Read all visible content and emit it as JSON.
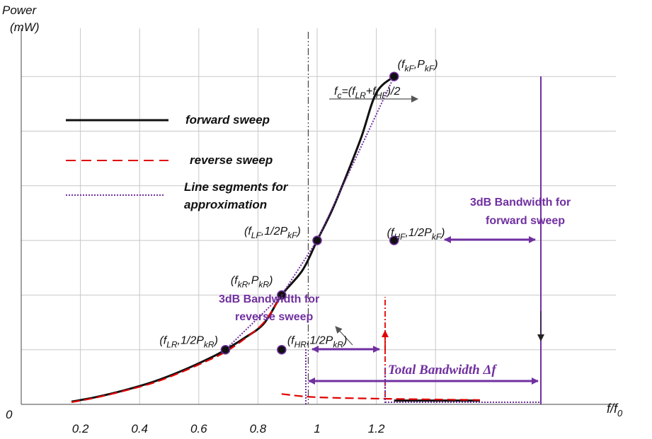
{
  "chart_data": {
    "type": "line",
    "ylabel_line1": "Power",
    "ylabel_line2": "(mW)",
    "xlabel": "f/f",
    "xlabel_sub": "0",
    "origin_label": "0",
    "x_ticks": [
      {
        "value": 0.2,
        "label": "0.2"
      },
      {
        "value": 0.4,
        "label": "0.4"
      },
      {
        "value": 0.6,
        "label": "0.6"
      },
      {
        "value": 0.8,
        "label": "0.8"
      },
      {
        "value": 1.0,
        "label": "1"
      },
      {
        "value": 1.2,
        "label": "1.2"
      }
    ],
    "xlim": [
      0.0,
      1.55
    ],
    "ylim": [
      0.0,
      6.5
    ],
    "grid": true,
    "legend_position": "top-left",
    "series": [
      {
        "name": "forward sweep",
        "color": "#111111",
        "style": "solid",
        "x": [
          0.17,
          0.25,
          0.35,
          0.45,
          0.55,
          0.65,
          0.69,
          0.75,
          0.82,
          0.88,
          0.95,
          1.0,
          1.05,
          1.1,
          1.15,
          1.2,
          1.26
        ],
        "y": [
          0.05,
          0.13,
          0.26,
          0.42,
          0.63,
          0.88,
          1.0,
          1.2,
          1.48,
          2.0,
          2.45,
          3.0,
          3.55,
          4.2,
          4.9,
          5.7,
          6.0
        ]
      },
      {
        "name": "forward sweep (after jump)",
        "color": "#111111",
        "style": "solid",
        "legend": false,
        "x": [
          1.26,
          1.55
        ],
        "y": [
          0.07,
          0.07
        ]
      },
      {
        "name": "reverse sweep",
        "color": "#e00000",
        "style": "dashed",
        "x": [
          0.17,
          0.25,
          0.35,
          0.45,
          0.55,
          0.65,
          0.69,
          0.75,
          0.82,
          0.88
        ],
        "y": [
          0.04,
          0.12,
          0.25,
          0.4,
          0.61,
          0.85,
          0.96,
          1.18,
          1.5,
          2.0
        ]
      },
      {
        "name": "reverse sweep (after jump)",
        "color": "#e00000",
        "style": "dashed",
        "legend": false,
        "x": [
          0.88,
          1.0,
          1.26,
          1.55
        ],
        "y": [
          0.19,
          0.13,
          0.1,
          0.08
        ]
      },
      {
        "name": "Line segments for approximation",
        "color": "#7030a0",
        "style": "dotted",
        "x": [
          0.69,
          0.88,
          1.0,
          1.26
        ],
        "y": [
          1.0,
          2.0,
          3.0,
          6.0
        ]
      }
    ],
    "points": [
      {
        "x": 0.69,
        "y": 1.0,
        "label_main": "(f",
        "label_sub": "LR",
        "label_rest": ",1/2P",
        "label_sub2": "kR",
        "label_end": ")"
      },
      {
        "x": 0.88,
        "y": 2.0,
        "label_main": "(f",
        "label_sub": "kR",
        "label_rest": ",P",
        "label_sub2": "kR",
        "label_end": ")"
      },
      {
        "x": 0.88,
        "y": 1.0,
        "label_main": "(f",
        "label_sub": "HR",
        "label_rest": ",1/2P",
        "label_sub2": "kR",
        "label_end": ")"
      },
      {
        "x": 1.0,
        "y": 3.0,
        "label_main": "(f",
        "label_sub": "LF",
        "label_rest": ",1/2P",
        "label_sub2": "kF",
        "label_end": ")"
      },
      {
        "x": 1.26,
        "y": 3.0,
        "label_main": "(f",
        "label_sub": "HF",
        "label_rest": ",1/2P",
        "label_sub2": "kF",
        "label_end": ")"
      },
      {
        "x": 1.26,
        "y": 6.0,
        "label_main": "(f",
        "label_sub": "kF",
        "label_rest": ",P",
        "label_sub2": "kF",
        "label_end": ")"
      }
    ],
    "center_line_x": 0.97,
    "fc_label_main": "f",
    "fc_label_sub": "c",
    "fc_label_rest1": "=(f",
    "fc_label_sub2": "LR",
    "fc_label_rest2": "+f",
    "fc_label_sub3": "HF",
    "fc_label_rest3": ")/2",
    "annotations": {
      "bw_forward_line1": "3dB Bandwidth for",
      "bw_forward_line2": "forward sweep",
      "bw_reverse_line1": "3dB Bandwidth for",
      "bw_reverse_line2": "reverse sweep",
      "total_bw": "Total Bandwidth Δf"
    }
  },
  "legend": {
    "forward": "forward sweep",
    "reverse": "reverse sweep",
    "segments_line1": "Line segments for",
    "segments_line2": "approximation"
  },
  "colors": {
    "forward": "#111111",
    "reverse": "#e00000",
    "segments": "#7030a0",
    "grid": "#c8c8c8"
  }
}
